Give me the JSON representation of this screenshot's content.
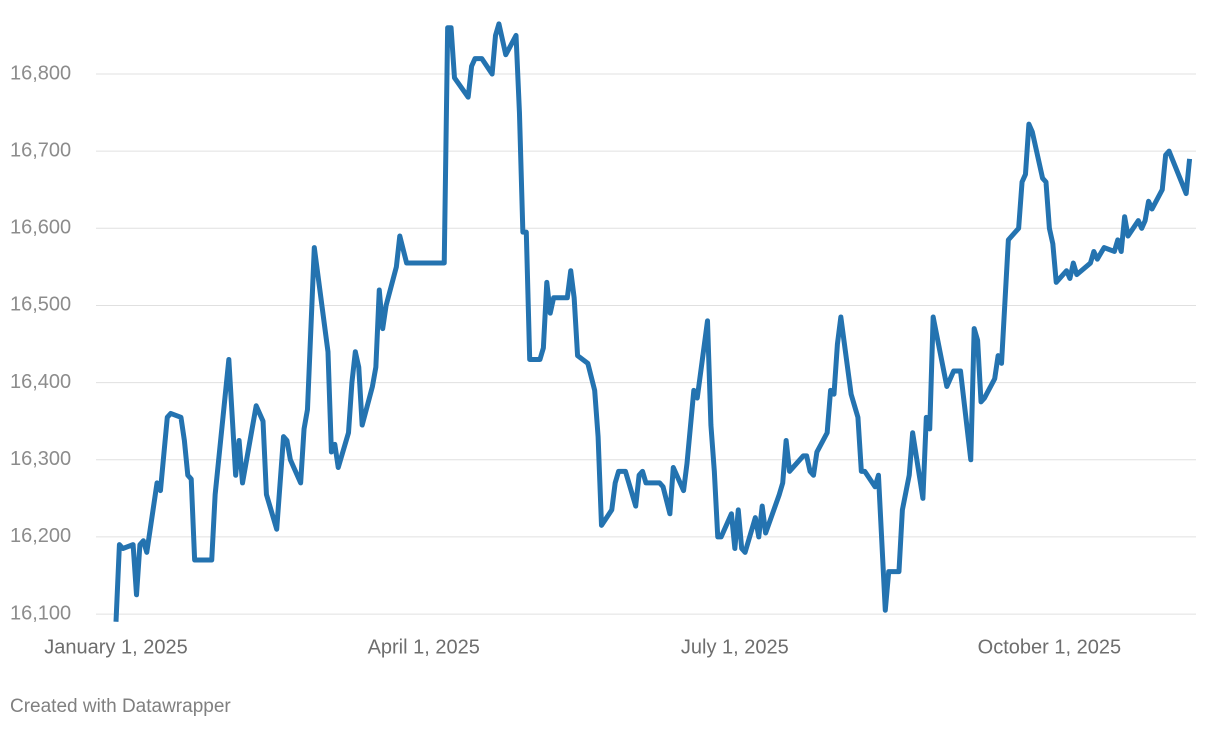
{
  "chart_data": {
    "type": "line",
    "x": [
      "2025-01-01",
      "2025-01-02",
      "2025-01-03",
      "2025-01-06",
      "2025-01-07",
      "2025-01-08",
      "2025-01-09",
      "2025-01-10",
      "2025-01-13",
      "2025-01-14",
      "2025-01-16",
      "2025-01-17",
      "2025-01-20",
      "2025-01-21",
      "2025-01-22",
      "2025-01-23",
      "2025-01-24",
      "2025-01-29",
      "2025-01-30",
      "2025-02-03",
      "2025-02-05",
      "2025-02-06",
      "2025-02-07",
      "2025-02-11",
      "2025-02-13",
      "2025-02-14",
      "2025-02-17",
      "2025-02-19",
      "2025-02-20",
      "2025-02-21",
      "2025-02-24",
      "2025-02-25",
      "2025-02-26",
      "2025-02-28",
      "2025-03-04",
      "2025-03-05",
      "2025-03-06",
      "2025-03-07",
      "2025-03-10",
      "2025-03-11",
      "2025-03-12",
      "2025-03-13",
      "2025-03-14",
      "2025-03-17",
      "2025-03-18",
      "2025-03-19",
      "2025-03-20",
      "2025-03-21",
      "2025-03-24",
      "2025-03-25",
      "2025-03-27",
      "2025-04-07",
      "2025-04-08",
      "2025-04-09",
      "2025-04-10",
      "2025-04-14",
      "2025-04-15",
      "2025-04-16",
      "2025-04-18",
      "2025-04-21",
      "2025-04-22",
      "2025-04-23",
      "2025-04-25",
      "2025-04-28",
      "2025-04-29",
      "2025-04-30",
      "2025-05-01",
      "2025-05-02",
      "2025-05-05",
      "2025-05-06",
      "2025-05-07",
      "2025-05-08",
      "2025-05-09",
      "2025-05-13",
      "2025-05-14",
      "2025-05-15",
      "2025-05-16",
      "2025-05-19",
      "2025-05-21",
      "2025-05-22",
      "2025-05-23",
      "2025-05-26",
      "2025-05-27",
      "2025-05-28",
      "2025-05-30",
      "2025-06-02",
      "2025-06-03",
      "2025-06-04",
      "2025-06-05",
      "2025-06-09",
      "2025-06-10",
      "2025-06-12",
      "2025-06-13",
      "2025-06-16",
      "2025-06-17",
      "2025-06-19",
      "2025-06-20",
      "2025-06-23",
      "2025-06-24",
      "2025-06-25",
      "2025-06-26",
      "2025-06-27",
      "2025-06-30",
      "2025-07-01",
      "2025-07-02",
      "2025-07-03",
      "2025-07-04",
      "2025-07-07",
      "2025-07-08",
      "2025-07-09",
      "2025-07-10",
      "2025-07-14",
      "2025-07-15",
      "2025-07-16",
      "2025-07-17",
      "2025-07-21",
      "2025-07-22",
      "2025-07-23",
      "2025-07-24",
      "2025-07-25",
      "2025-07-28",
      "2025-07-29",
      "2025-07-30",
      "2025-07-31",
      "2025-08-01",
      "2025-08-04",
      "2025-08-05",
      "2025-08-06",
      "2025-08-07",
      "2025-08-08",
      "2025-08-11",
      "2025-08-12",
      "2025-08-14",
      "2025-08-15",
      "2025-08-18",
      "2025-08-19",
      "2025-08-21",
      "2025-08-22",
      "2025-08-25",
      "2025-08-26",
      "2025-08-27",
      "2025-08-28",
      "2025-09-01",
      "2025-09-03",
      "2025-09-05",
      "2025-09-08",
      "2025-09-09",
      "2025-09-10",
      "2025-09-11",
      "2025-09-12",
      "2025-09-15",
      "2025-09-16",
      "2025-09-17",
      "2025-09-19",
      "2025-09-22",
      "2025-09-23",
      "2025-09-24",
      "2025-09-25",
      "2025-09-26",
      "2025-09-29",
      "2025-09-30",
      "2025-10-01",
      "2025-10-02",
      "2025-10-03",
      "2025-10-06",
      "2025-10-07",
      "2025-10-08",
      "2025-10-09",
      "2025-10-13",
      "2025-10-14",
      "2025-10-15",
      "2025-10-17",
      "2025-10-20",
      "2025-10-21",
      "2025-10-22",
      "2025-10-23",
      "2025-10-24",
      "2025-10-27",
      "2025-10-28",
      "2025-10-29",
      "2025-10-30",
      "2025-10-31",
      "2025-11-03",
      "2025-11-04",
      "2025-11-05",
      "2025-11-10",
      "2025-11-11"
    ],
    "values": [
      16090,
      16190,
      16185,
      16190,
      16125,
      16190,
      16195,
      16180,
      16270,
      16260,
      16355,
      16360,
      16355,
      16325,
      16280,
      16275,
      16170,
      16170,
      16255,
      16430,
      16280,
      16325,
      16270,
      16370,
      16350,
      16255,
      16210,
      16330,
      16325,
      16300,
      16270,
      16340,
      16365,
      16575,
      16440,
      16310,
      16320,
      16290,
      16335,
      16400,
      16440,
      16420,
      16345,
      16395,
      16420,
      16520,
      16470,
      16500,
      16550,
      16590,
      16555,
      16555,
      16860,
      16860,
      16795,
      16770,
      16810,
      16820,
      16820,
      16800,
      16850,
      16865,
      16825,
      16850,
      16750,
      16595,
      16595,
      16430,
      16430,
      16445,
      16530,
      16490,
      16510,
      16510,
      16545,
      16510,
      16435,
      16425,
      16390,
      16330,
      16215,
      16235,
      16270,
      16285,
      16285,
      16240,
      16280,
      16285,
      16270,
      16270,
      16265,
      16230,
      16290,
      16260,
      16295,
      16390,
      16380,
      16480,
      16345,
      16285,
      16200,
      16200,
      16230,
      16185,
      16235,
      16185,
      16180,
      16225,
      16200,
      16240,
      16205,
      16255,
      16270,
      16325,
      16285,
      16305,
      16305,
      16285,
      16280,
      16310,
      16335,
      16390,
      16385,
      16450,
      16485,
      16385,
      16370,
      16355,
      16285,
      16285,
      16265,
      16280,
      16105,
      16155,
      16155,
      16235,
      16280,
      16335,
      16250,
      16355,
      16340,
      16485,
      16395,
      16415,
      16415,
      16300,
      16470,
      16455,
      16375,
      16380,
      16405,
      16435,
      16425,
      16585,
      16600,
      16660,
      16670,
      16735,
      16725,
      16665,
      16660,
      16600,
      16580,
      16530,
      16545,
      16535,
      16555,
      16540,
      16555,
      16570,
      16560,
      16575,
      16570,
      16585,
      16570,
      16615,
      16590,
      16610,
      16600,
      16610,
      16635,
      16625,
      16650,
      16695,
      16700,
      16645,
      16690
    ],
    "color": "#2473b0",
    "xlim": [
      "2025-01-01",
      "2025-11-12"
    ],
    "xticks": [
      {
        "value": "2025-01-01",
        "label": "January 1, 2025"
      },
      {
        "value": "2025-04-01",
        "label": "April 1, 2025"
      },
      {
        "value": "2025-07-01",
        "label": "July 1, 2025"
      },
      {
        "value": "2025-10-01",
        "label": "October 1, 2025"
      }
    ],
    "ylim": [
      16080,
      16870
    ],
    "yticks": [
      {
        "value": 16100,
        "label": "16,100"
      },
      {
        "value": 16200,
        "label": "16,200"
      },
      {
        "value": 16300,
        "label": "16,300"
      },
      {
        "value": 16400,
        "label": "16,400"
      },
      {
        "value": 16500,
        "label": "16,500"
      },
      {
        "value": 16600,
        "label": "16,600"
      },
      {
        "value": 16700,
        "label": "16,700"
      },
      {
        "value": 16800,
        "label": "16,800"
      }
    ],
    "grid": true,
    "credit": "Created with Datawrapper"
  }
}
